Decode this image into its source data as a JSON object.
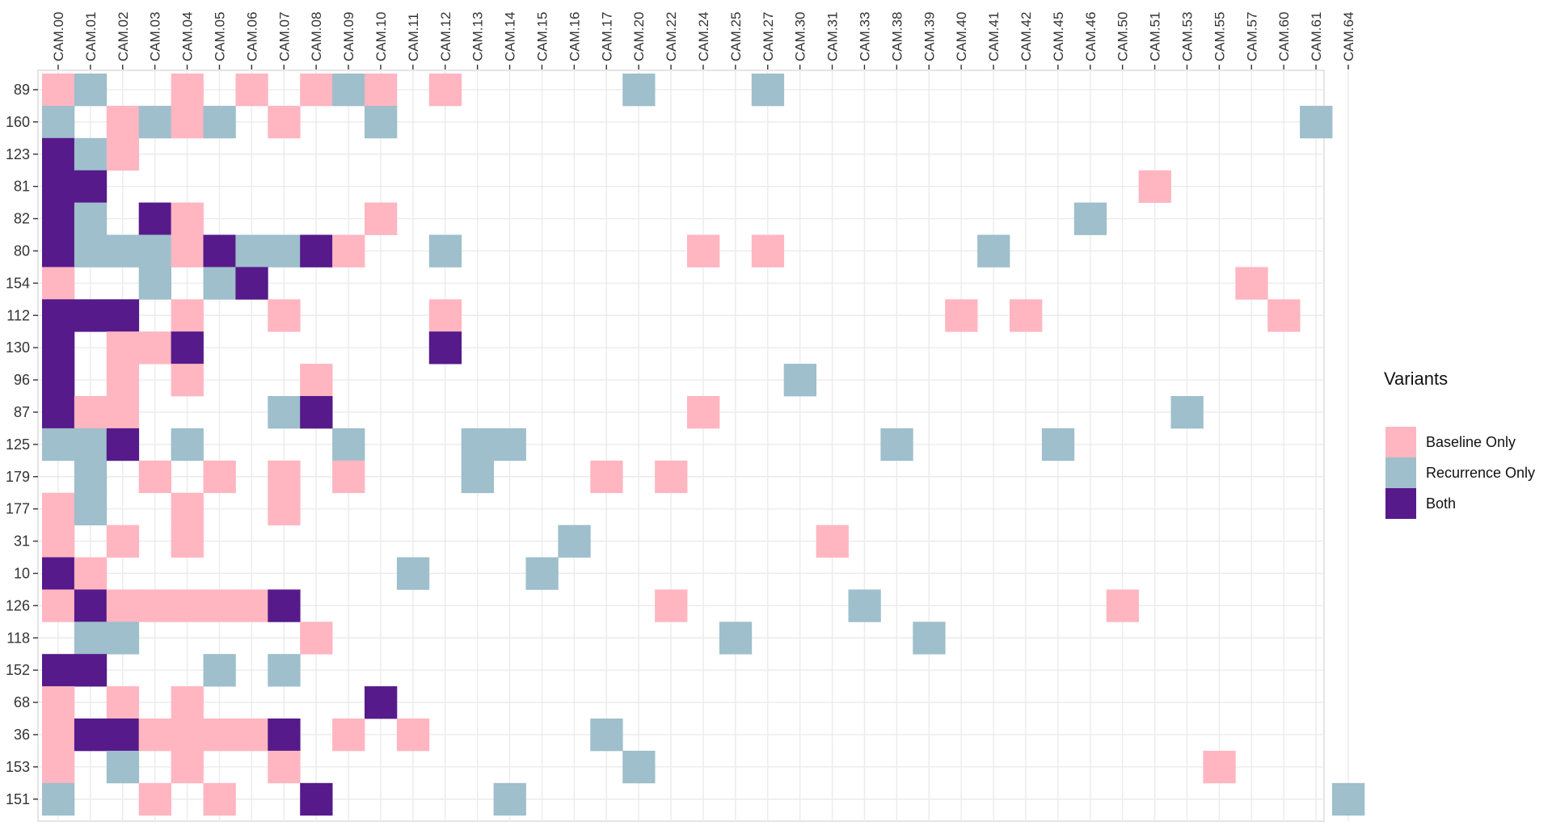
{
  "chart_data": {
    "type": "heatmap",
    "columns": [
      "CAM.00",
      "CAM.01",
      "CAM.02",
      "CAM.03",
      "CAM.04",
      "CAM.05",
      "CAM.06",
      "CAM.07",
      "CAM.08",
      "CAM.09",
      "CAM.10",
      "CAM.11",
      "CAM.12",
      "CAM.13",
      "CAM.14",
      "CAM.15",
      "CAM.16",
      "CAM.17",
      "CAM.20",
      "CAM.22",
      "CAM.24",
      "CAM.25",
      "CAM.27",
      "CAM.30",
      "CAM.31",
      "CAM.33",
      "CAM.38",
      "CAM.39",
      "CAM.40",
      "CAM.41",
      "CAM.42",
      "CAM.45",
      "CAM.46",
      "CAM.50",
      "CAM.51",
      "CAM.53",
      "CAM.55",
      "CAM.57",
      "CAM.60",
      "CAM.61",
      "CAM.64"
    ],
    "rows": [
      "89",
      "160",
      "123",
      "81",
      "82",
      "80",
      "154",
      "112",
      "130",
      "96",
      "87",
      "125",
      "179",
      "177",
      "31",
      "10",
      "126",
      "118",
      "152",
      "68",
      "36",
      "153",
      "151"
    ],
    "cells": [
      "B R . . B . B . B R B . B . . . . . R . . . R . . . . . . . . . . . . . . . . . .",
      "R . B R B R . B . . R . . . . . . . . . . . . . . . . . . . . . . . . . . . . R .",
      "X R B . . . . . . . . . . . . . . . . . . . . . . . . . . . . . . . . . . . . . .",
      "X X . . . . . . . . . . . . . . . . . . . . . . . . . . . . . . . . B . . . . . .",
      "X R . X B . . . . . B . . . . . . . . . . . . . . . . . . . . . R . . . . . . . .",
      "X R R R B X R R X B . . R . . . . . . . B . B . . . . . . R . . . . . . . . . . .",
      "B . . R . R X . . . . . . . . . . . . . . . . . . . . . . . . . . . . . . B . . .",
      "X X X . B . . B . . . . B . . . . . . . . . . . . . . . B . B . . . . . . . B . .",
      "X . B B X . . . . . . . X . . . . . . . . . . . . . . . . . . . . . . . . . . . .",
      "X . B . B . . . B . . . . . . . . . . . . . . R . . . . . . . . . . . . . . . . .",
      "X B B . . . . R X . . . . . . . . . . . B . . . . . . . . . . . . . . R . . . . .",
      "R R X . R . . . . R . . . R R . . . . . . . . . . . R . . . . R . . . . . . . . .",
      ". R . B . B . B . B . . . R . . . B . B . . . . . . . . . . . . . . . . . . . . .",
      "B R . . B . . B . . . . . . . . . . . . . . . . . . . . . . . . . . . . . . . . .",
      "B . B . B . . . . . . . . . . . R . . . . . . . B . . . . . . . . . . . . . . . .",
      "X B . . . . . . . . . R . . . R . . . . . . . . . . . . . . . . . . . . . . . . .",
      "B X B B B B B X . . . . . . . . . . . B . . . . . R . . . . . . . B . . . . . . .",
      ". R R . . . . . B . . . . . . . . . . . . R . . . . . R . . . . . . . . . . . . .",
      "X X . . . R . R . . . . . . . . . . . . . . . . . . . . . . . . . . . . . . . . .",
      "B . B . B . . . . . X . . . . . . . . . . . . . . . . . . . . . . . . . . . . . .",
      "B X X B B B B X . B . B . . . . . R . . . . . . . . . . . . . . . . . . . . . . .",
      "B . R . B . . B . . . . . . . . . . R . . . . . . . . . . . . . . . . . B . . . .",
      "R . . B . B . . X . . . . . R . . . . . . . . . . . . . . . . . . . . . . . . . R"
    ],
    "code_key": {
      "B": "Baseline Only",
      "R": "Recurrence Only",
      "X": "Both",
      ".": "none"
    },
    "legend": {
      "title": "Variants",
      "entries": [
        {
          "code": "B",
          "label": "Baseline Only",
          "color": "#FFB6C1"
        },
        {
          "code": "R",
          "label": "Recurrence Only",
          "color": "#9EBFCB"
        },
        {
          "code": "X",
          "label": "Both",
          "color": "#561A8B"
        }
      ],
      "position": "right"
    },
    "panel_background": "#FFFFFF",
    "gridline_color": "#EBEBEB",
    "title": "",
    "xlabel": "",
    "ylabel": ""
  }
}
